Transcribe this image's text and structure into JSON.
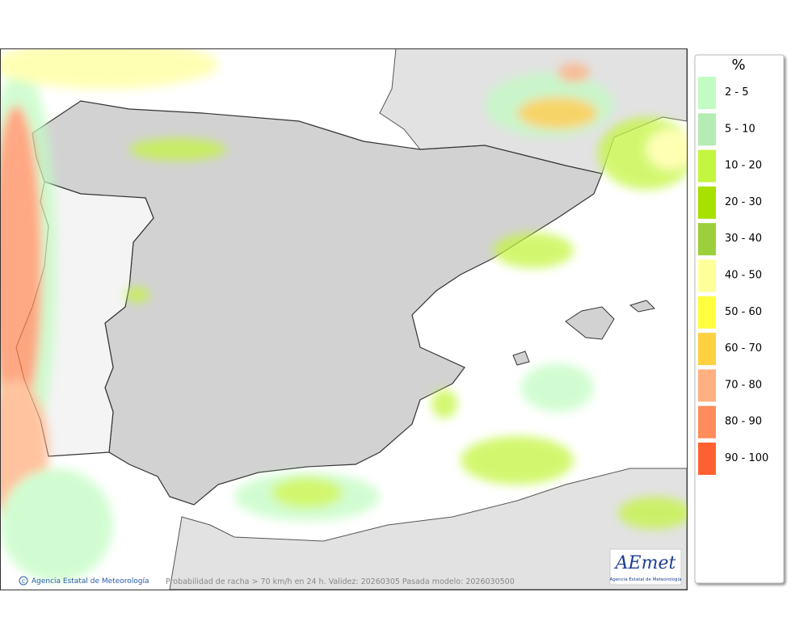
{
  "legend": {
    "title": "%",
    "items": [
      {
        "label": "2 - 5",
        "color": "#c2fcc2"
      },
      {
        "label": "5 - 10",
        "color": "#b4ecb4"
      },
      {
        "label": "10 - 20",
        "color": "#c4f540"
      },
      {
        "label": "20 - 30",
        "color": "#a8e000"
      },
      {
        "label": "30 - 40",
        "color": "#9ccf3c"
      },
      {
        "label": "40 - 50",
        "color": "#ffff9c"
      },
      {
        "label": "50 - 60",
        "color": "#ffff40"
      },
      {
        "label": "60 - 70",
        "color": "#ffd040"
      },
      {
        "label": "70 - 80",
        "color": "#ffb080"
      },
      {
        "label": "80 - 90",
        "color": "#ff8c5a"
      },
      {
        "label": "90 - 100",
        "color": "#ff6030"
      }
    ]
  },
  "footer": {
    "credit_symbol": "c",
    "credit": "Agencia Estatal de Meteorología",
    "caption": "Probabilidad de racha > 70 km/h en 24 h. Validez: 20260305 Pasada modelo: 2026030500"
  },
  "logo": {
    "name": "AEmet",
    "subtitle": "Agencia Estatal de Meteorología"
  }
}
